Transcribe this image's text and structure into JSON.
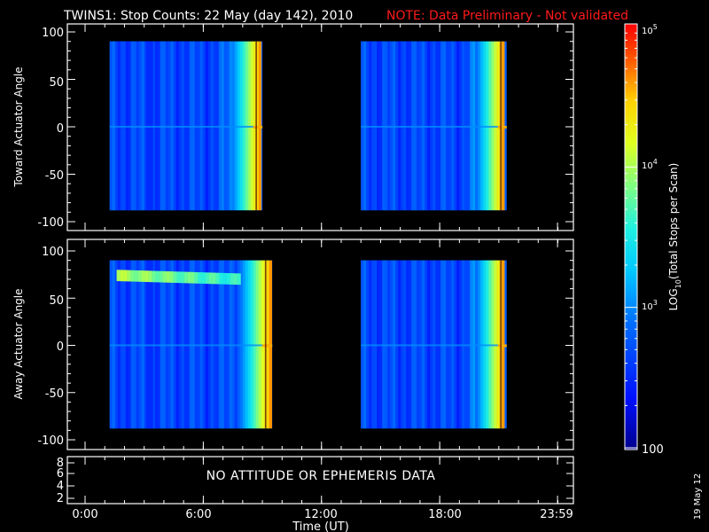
{
  "title": "TWINS1: Stop Counts: 22 May (day 142), 2010",
  "warning": "NOTE: Data Preliminary - Not validated",
  "colors": {
    "warning": "#ff1a1a",
    "frame": "#ffffff",
    "background": "#000000"
  },
  "chart_data": [
    {
      "type": "heatmap",
      "panel": "top",
      "ylabel": "Toward Actuator Angle",
      "ylim": [
        -110,
        110
      ],
      "ytick_labels": [
        "100",
        "50",
        "0",
        "-50",
        "-100"
      ],
      "y_coverage": [
        -88,
        90
      ],
      "data_blocks_hours": [
        [
          1.25,
          9.0
        ],
        [
          14.0,
          21.4
        ]
      ]
    },
    {
      "type": "heatmap",
      "panel": "middle",
      "ylabel": "Away Actuator Angle",
      "ylim": [
        -110,
        110
      ],
      "ytick_labels": [
        "100",
        "50",
        "0",
        "-50",
        "-100"
      ],
      "y_coverage": [
        -88,
        90
      ],
      "data_blocks_hours": [
        [
          1.25,
          9.5
        ],
        [
          14.0,
          21.4
        ]
      ]
    },
    {
      "type": "line",
      "panel": "bottom",
      "ylim": [
        1.5,
        8.5
      ],
      "ytick_labels": [
        "8",
        "6",
        "4",
        "2"
      ],
      "message": "NO ATTITUDE OR EPHEMERIS DATA"
    }
  ],
  "x_axis": {
    "label": "Time (UT)",
    "xlim_hours": [
      0,
      24
    ],
    "tick_labels": [
      "0:00",
      "6:00",
      "12:00",
      "18:00",
      "23:59"
    ]
  },
  "colorbar": {
    "label": "LOG10(Total Stops per Scan)",
    "label_main": "LOG",
    "label_sub": "10",
    "label_rest": "(Total Stops per Scan)",
    "scale": "log",
    "range": [
      100,
      100000
    ],
    "tick_labels": [
      "10^5",
      "10^4",
      "10^3",
      "100"
    ],
    "tick_label_bottom": "100"
  },
  "footer_date": "19 May 12"
}
